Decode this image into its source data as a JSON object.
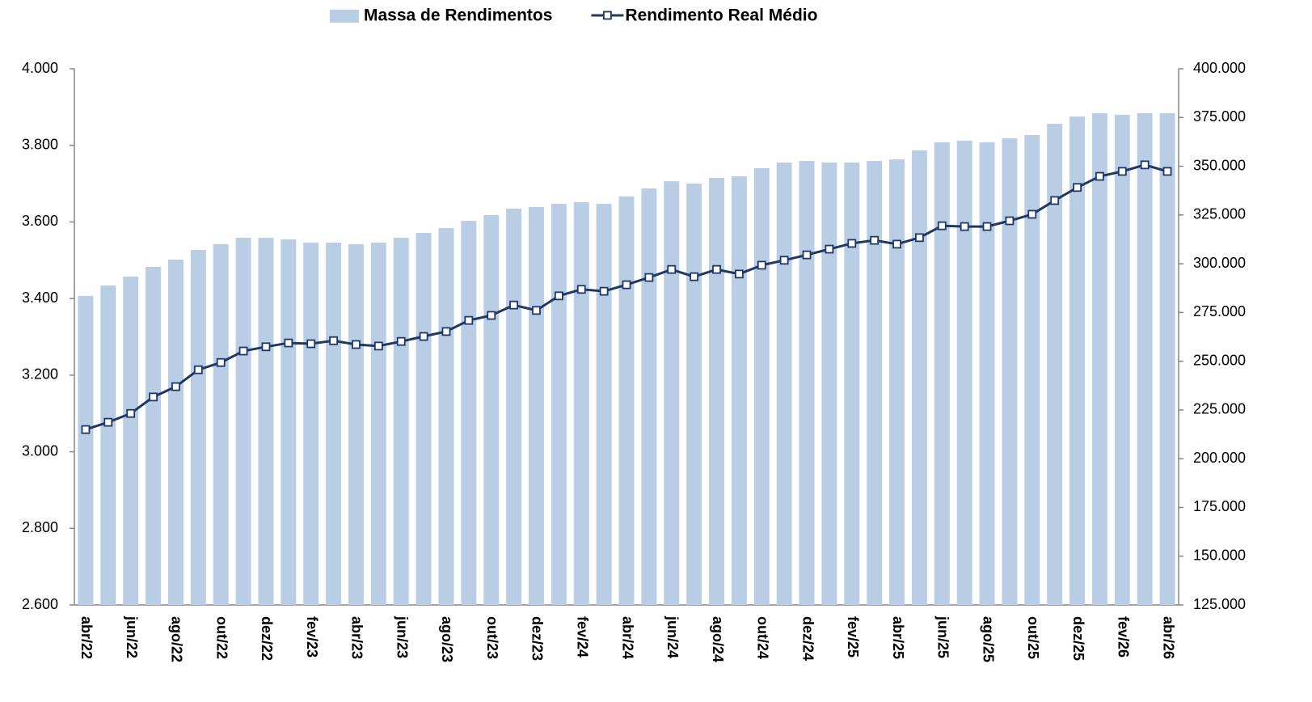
{
  "chart_data": {
    "type": "bar",
    "categories": [
      "abr/22",
      null,
      "jun/22",
      null,
      "ago/22",
      null,
      "out/22",
      null,
      "dez/22",
      null,
      "fev/23",
      null,
      "abr/23",
      null,
      "jun/23",
      null,
      "ago/23",
      null,
      "out/23",
      null,
      "dez/23",
      null,
      "fev/24",
      null,
      "abr/24",
      null,
      "jun/24",
      null,
      "ago/24",
      null,
      "out/24",
      null,
      "dez/24",
      null,
      "fev/25",
      null,
      "abr/25",
      null,
      "jun/25",
      null,
      "ago/25",
      null,
      "out/25",
      null,
      "dez/25",
      null,
      "fev/26",
      null,
      "abr/26"
    ],
    "series": [
      {
        "name": "Massa de Rendimentos",
        "type": "bar",
        "axis": "y2",
        "color": "#b9cde5",
        "values": [
          283500,
          288800,
          293400,
          298400,
          302100,
          307100,
          310000,
          313300,
          313300,
          312500,
          310800,
          310800,
          310000,
          310800,
          313300,
          315800,
          318300,
          322000,
          324900,
          328200,
          329100,
          330700,
          331600,
          330700,
          334500,
          338600,
          342300,
          341100,
          344000,
          344800,
          349000,
          351900,
          352700,
          351900,
          351900,
          352700,
          353500,
          358100,
          362300,
          363100,
          362300,
          364300,
          366000,
          371800,
          375500,
          377200,
          376400,
          377200,
          377200
        ]
      },
      {
        "name": "Rendimento Real Médio",
        "type": "line",
        "color": "#1f3864",
        "values": [
          3058,
          3077,
          3100,
          3143,
          3170,
          3214,
          3233,
          3263,
          3274,
          3284,
          3282,
          3290,
          3280,
          3276,
          3288,
          3301,
          3314,
          3343,
          3356,
          3383,
          3369,
          3407,
          3424,
          3419,
          3436,
          3455,
          3476,
          3457,
          3476,
          3464,
          3487,
          3500,
          3514,
          3529,
          3544,
          3552,
          3542,
          3559,
          3590,
          3588,
          3588,
          3603,
          3620,
          3656,
          3690,
          3719,
          3732,
          3749,
          3732
        ]
      }
    ],
    "ylim": [
      2600,
      4000
    ],
    "yticks": [
      {
        "value": 2600,
        "label": "2.600"
      },
      {
        "value": 2800,
        "label": "2.800"
      },
      {
        "value": 3000,
        "label": "3.000"
      },
      {
        "value": 3200,
        "label": "3.200"
      },
      {
        "value": 3400,
        "label": "3.400"
      },
      {
        "value": 3600,
        "label": "3.600"
      },
      {
        "value": 3800,
        "label": "3.800"
      },
      {
        "value": 4000,
        "label": "4.000"
      }
    ],
    "y2lim": [
      125000,
      400000
    ],
    "y2ticks": [
      {
        "value": 125000,
        "label": "125.000"
      },
      {
        "value": 150000,
        "label": "150.000"
      },
      {
        "value": 175000,
        "label": "175.000"
      },
      {
        "value": 200000,
        "label": "200.000"
      },
      {
        "value": 225000,
        "label": "225.000"
      },
      {
        "value": 250000,
        "label": "250.000"
      },
      {
        "value": 275000,
        "label": "275.000"
      },
      {
        "value": 300000,
        "label": "300.000"
      },
      {
        "value": 325000,
        "label": "325.000"
      },
      {
        "value": 350000,
        "label": "350.000"
      },
      {
        "value": 375000,
        "label": "375.000"
      },
      {
        "value": 400000,
        "label": "400.000"
      }
    ],
    "legend": "top"
  }
}
